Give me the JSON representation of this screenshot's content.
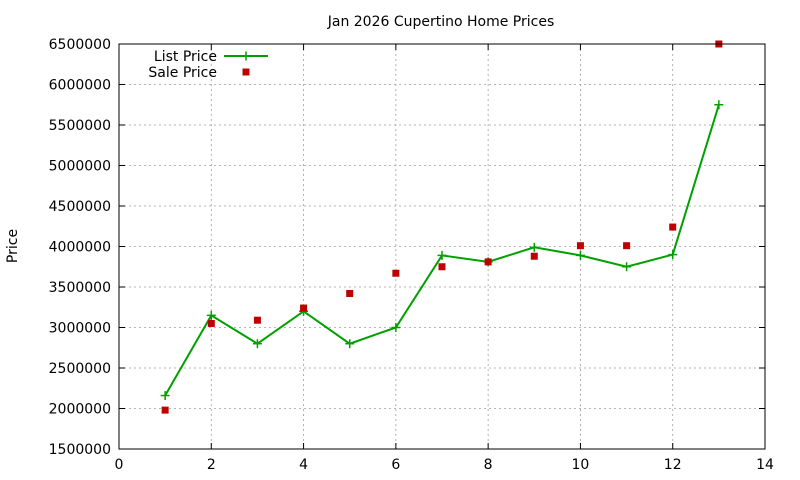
{
  "chart_data": {
    "type": "line",
    "title": "Jan 2026 Cupertino Home Prices",
    "xlabel": "",
    "ylabel": "Price",
    "xlim": [
      0,
      14
    ],
    "ylim": [
      1500000,
      6500000
    ],
    "xticks": [
      0,
      2,
      4,
      6,
      8,
      10,
      12,
      14
    ],
    "yticks": [
      1500000,
      2000000,
      2500000,
      3000000,
      3500000,
      4000000,
      4500000,
      5000000,
      5500000,
      6000000,
      6500000
    ],
    "grid": true,
    "legend_position": "top-left",
    "series": [
      {
        "name": "List Price",
        "style": "linespoints",
        "color": "#00a000",
        "x": [
          1,
          2,
          3,
          4,
          5,
          6,
          7,
          8,
          9,
          10,
          11,
          12,
          13
        ],
        "y": [
          2160000,
          3150000,
          2800000,
          3200000,
          2800000,
          3000000,
          3890000,
          3810000,
          3990000,
          3890000,
          3750000,
          3900000,
          5750000
        ]
      },
      {
        "name": "Sale Price",
        "style": "points",
        "color": "#c00000",
        "x": [
          1,
          2,
          3,
          4,
          5,
          6,
          7,
          8,
          9,
          10,
          11,
          12,
          13
        ],
        "y": [
          1980000,
          3050000,
          3090000,
          3240000,
          3420000,
          3670000,
          3750000,
          3810000,
          3880000,
          4010000,
          4010000,
          4240000,
          6500000
        ]
      }
    ]
  }
}
